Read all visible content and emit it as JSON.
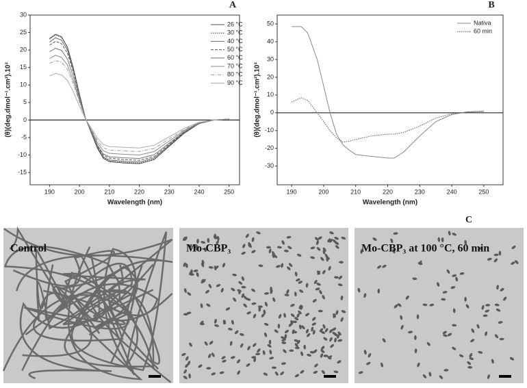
{
  "chart_data": [
    {
      "type": "line",
      "panel_label": "A",
      "x_label": "Wavelength (nm)",
      "y_label": "(θ)(deg.dmol⁻¹.cm²).10³",
      "x": [
        190,
        192,
        194,
        196,
        198,
        200,
        202,
        204,
        206,
        208,
        210,
        215,
        220,
        225,
        230,
        235,
        240,
        245,
        250
      ],
      "xlim": [
        183.5,
        253.5
      ],
      "xticks": [
        190,
        200,
        210,
        220,
        230,
        240,
        250
      ],
      "ylim": [
        -18.5,
        30
      ],
      "yticks": [
        -15,
        -10,
        -5,
        0,
        5,
        10,
        15,
        20,
        25,
        30
      ],
      "hline": 0,
      "legend": "upper right",
      "series": [
        {
          "name": "26 °C",
          "color": "#555555",
          "style": "solid",
          "values": [
            23.3,
            24.5,
            23.8,
            20.8,
            14.7,
            7.4,
            0.5,
            -3.8,
            -8.1,
            -11,
            -11.9,
            -12.3,
            -12.5,
            -11.3,
            -7.5,
            -3.8,
            -1,
            0,
            0.3
          ]
        },
        {
          "name": "30 °C",
          "color": "#444444",
          "style": "dotted",
          "values": [
            23.1,
            24.3,
            23.6,
            20.7,
            14.6,
            7.3,
            0.5,
            -3.7,
            -8,
            -10.8,
            -11.7,
            -12.1,
            -12.3,
            -11.1,
            -7.4,
            -3.7,
            -1,
            0,
            0.3
          ]
        },
        {
          "name": "40 °C",
          "color": "#666666",
          "style": "solid",
          "values": [
            22.3,
            23.5,
            22.8,
            20,
            14.1,
            7.1,
            0.5,
            -3.6,
            -7.8,
            -10.6,
            -11.4,
            -11.8,
            -12,
            -10.8,
            -7.2,
            -3.6,
            -1,
            0,
            0.3
          ]
        },
        {
          "name": "50 °C",
          "color": "#555555",
          "style": "dashed",
          "values": [
            21.4,
            22.5,
            21.8,
            19.1,
            13.5,
            6.8,
            0.5,
            -3.5,
            -7.5,
            -10.1,
            -10.9,
            -11.3,
            -11.5,
            -10.4,
            -6.9,
            -3.5,
            -0.9,
            0,
            0.3
          ]
        },
        {
          "name": "60 °C",
          "color": "#777777",
          "style": "solid",
          "values": [
            19.5,
            20.5,
            19.9,
            17.4,
            12.3,
            6.2,
            0.4,
            -3.3,
            -7.2,
            -9.7,
            -10.5,
            -10.8,
            -11,
            -9.9,
            -6.6,
            -3.3,
            -0.9,
            0,
            0.3
          ]
        },
        {
          "name": "70 °C",
          "color": "#888888",
          "style": "solid",
          "values": [
            17.6,
            18.5,
            17.9,
            15.7,
            11.1,
            5.6,
            0.4,
            -3,
            -6.5,
            -8.8,
            -9.5,
            -9.8,
            -10,
            -9,
            -6,
            -3,
            -0.8,
            0,
            0.3
          ]
        },
        {
          "name": "80 °C",
          "color": "#999999",
          "style": "dashdot",
          "values": [
            16.2,
            17,
            16.5,
            14.5,
            10.2,
            5.1,
            0.3,
            -2.7,
            -5.9,
            -7.9,
            -8.6,
            -8.8,
            -9,
            -8.1,
            -5.4,
            -2.7,
            -0.7,
            0,
            0.3
          ]
        },
        {
          "name": "90 °C",
          "color": "#aaaaaa",
          "style": "solid",
          "values": [
            12.6,
            13.3,
            12.9,
            11.3,
            8,
            4,
            0.3,
            -2.4,
            -5.2,
            -7,
            -7.6,
            -7.8,
            -8,
            -7.2,
            -4.8,
            -2.4,
            -0.6,
            0,
            0.3
          ]
        }
      ]
    },
    {
      "type": "line",
      "panel_label": "B",
      "x_label": "Wavelength (nm)",
      "y_label": "(θ)(deg.dmol⁻¹.cm²).10³",
      "x": [
        190,
        193,
        195,
        198,
        200,
        202,
        204,
        206,
        208,
        210,
        215,
        220,
        222,
        225,
        230,
        235,
        240,
        245,
        250
      ],
      "xlim": [
        185.5,
        256
      ],
      "xticks": [
        190,
        200,
        210,
        220,
        230,
        240,
        250
      ],
      "ylim": [
        -40.5,
        55
      ],
      "yticks": [
        -30,
        -20,
        -10,
        0,
        10,
        20,
        30,
        40,
        50
      ],
      "hline": 0,
      "legend": "upper right",
      "series": [
        {
          "name": "Nativa",
          "color": "#888888",
          "style": "solid",
          "values": [
            48.5,
            48.5,
            45,
            30,
            15,
            0,
            -12,
            -18,
            -21,
            -23.5,
            -24.5,
            -25.5,
            -25.5,
            -22,
            -13,
            -5,
            -1,
            0.5,
            0.8
          ]
        },
        {
          "name": "60 min",
          "color": "#555555",
          "style": "dotted",
          "values": [
            6,
            8.5,
            7,
            0,
            -5,
            -10,
            -14,
            -16.5,
            -16,
            -15,
            -13,
            -12,
            -12,
            -11,
            -7.5,
            -3,
            -0.5,
            0.5,
            1
          ]
        }
      ]
    }
  ],
  "micrographs": {
    "panel_label": "C",
    "images": [
      {
        "label": "Control"
      },
      {
        "label": "Mo-CBP₃"
      },
      {
        "label": "Mo-CBP₃ at 100 °C, 60 min"
      }
    ]
  }
}
